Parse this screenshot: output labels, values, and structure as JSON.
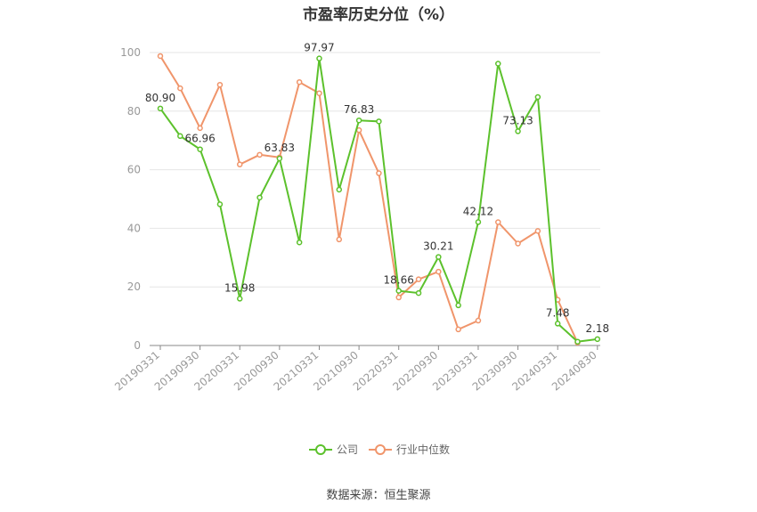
{
  "chart_data": {
    "type": "line",
    "title": "市盈率历史分位（%）",
    "source": "数据来源：恒生聚源",
    "ylim": [
      0,
      100
    ],
    "yticks": [
      0,
      20,
      40,
      60,
      80,
      100
    ],
    "tick_labels": [
      "20190331",
      "20190930",
      "20200331",
      "20200930",
      "20210331",
      "20210930",
      "20220331",
      "20220930",
      "20230331",
      "20230930",
      "20240331",
      "20240830"
    ],
    "grid": true,
    "legend_position": "bottom",
    "series": [
      {
        "name": "公司",
        "color": "#5cc12c",
        "values": [
          80.9,
          71.5,
          66.96,
          48.2,
          15.98,
          50.5,
          63.83,
          35.2,
          97.97,
          53.2,
          76.83,
          76.5,
          18.66,
          17.9,
          30.21,
          13.7,
          42.12,
          96.2,
          73.13,
          84.8,
          7.48,
          1.3,
          2.18
        ],
        "labels": {
          "0": "80.90",
          "2": "66.96",
          "4": "15.98",
          "6": "63.83",
          "8": "97.97",
          "10": "76.83",
          "12": "18.66",
          "14": "30.21",
          "16": "42.12",
          "18": "73.13",
          "20": "7.48",
          "22": "2.18"
        }
      },
      {
        "name": "行业中位数",
        "color": "#f0956b",
        "values": [
          98.8,
          87.8,
          74.2,
          89.0,
          61.8,
          65.1,
          64.2,
          89.9,
          86.1,
          36.2,
          73.5,
          58.8,
          16.4,
          22.6,
          25.2,
          5.5,
          8.5,
          42.1,
          34.8,
          39.1,
          15.6,
          1.0,
          null
        ]
      }
    ]
  }
}
